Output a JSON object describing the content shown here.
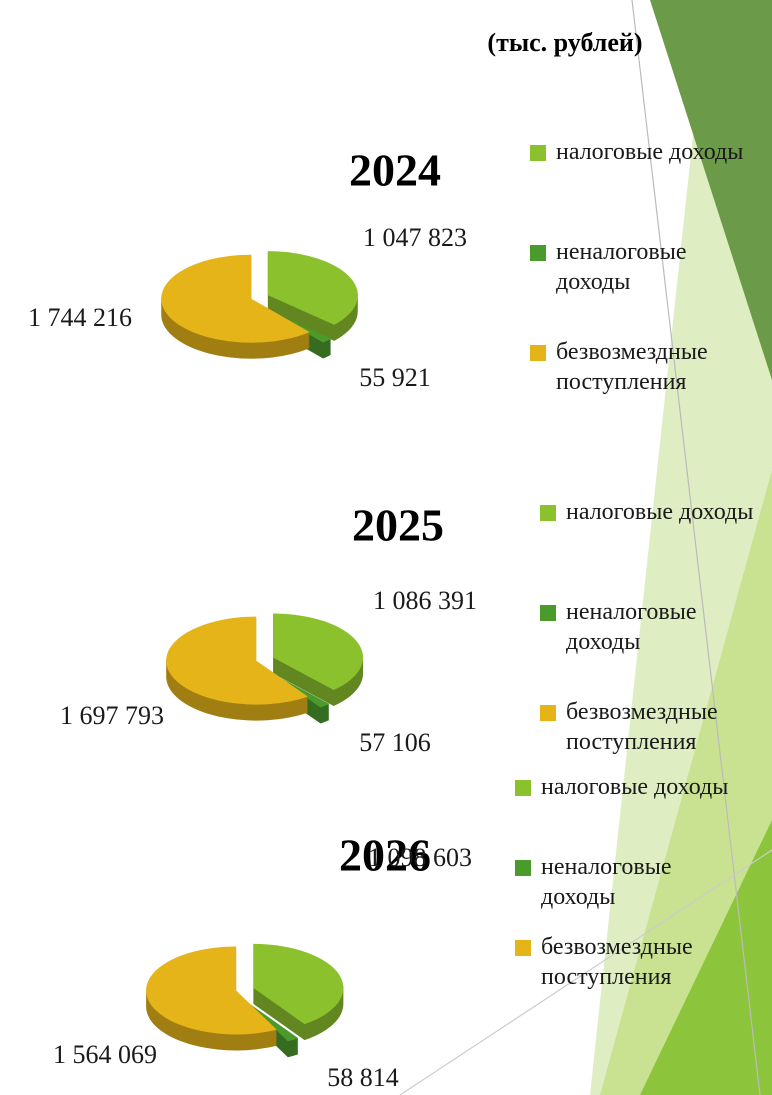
{
  "header": {
    "title": "(тыс. рублей)"
  },
  "chart_data": [
    {
      "type": "pie",
      "title": "2024",
      "categories": [
        "налоговые доходы",
        "неналоговые доходы",
        "безвозмездные поступления"
      ],
      "values": [
        1047823,
        55921,
        1744216
      ],
      "value_labels": [
        "1 047 823",
        "55 921",
        "1 744 216"
      ],
      "colors": [
        "#8cc12e",
        "#4b9a2c",
        "#e5b419"
      ]
    },
    {
      "type": "pie",
      "title": "2025",
      "categories": [
        "налоговые доходы",
        "неналоговые доходы",
        "безвозмездные поступления"
      ],
      "values": [
        1086391,
        57106,
        1697793
      ],
      "value_labels": [
        "1 086 391",
        "57 106",
        "1 697 793"
      ],
      "colors": [
        "#8cc12e",
        "#4b9a2c",
        "#e5b419"
      ]
    },
    {
      "type": "pie",
      "title": "2026",
      "categories": [
        "налоговые доходы",
        "неналоговые доходы",
        "безвозмездные поступления"
      ],
      "values": [
        1098603,
        58814,
        1564069
      ],
      "value_labels": [
        "1 098 603",
        "58 814",
        "1 564 069"
      ],
      "colors": [
        "#8cc12e",
        "#4b9a2c",
        "#e5b419"
      ]
    }
  ]
}
